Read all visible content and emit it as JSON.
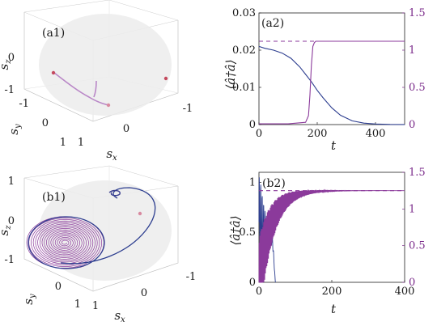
{
  "chart_data": [
    {
      "type": "line",
      "panel_label": "(a1)",
      "view": "3d-sphere",
      "xlabel": "s_x",
      "ylabel": "s_y",
      "zlabel": "s_z",
      "x_ticks": [
        "1",
        "0",
        "-1"
      ],
      "y_ticks": [
        "-1",
        "0",
        "1"
      ],
      "z_ticks": [
        "0",
        "-1"
      ],
      "series": [
        {
          "values": [
            [
              -0.85,
              0.0,
              -0.05
            ],
            [
              -0.6,
              0.1,
              -0.3
            ],
            [
              -0.3,
              0.2,
              -0.55
            ],
            [
              0.0,
              0.3,
              -0.7
            ],
            [
              0.3,
              0.4,
              -0.8
            ],
            [
              0.5,
              0.5,
              -0.85
            ]
          ]
        },
        {
          "values": [
            [
              0.05,
              0.2,
              -0.4
            ],
            [
              0.05,
              0.25,
              -0.65
            ],
            [
              0.0,
              0.35,
              -0.8
            ]
          ]
        }
      ],
      "points": [
        [
          -0.9,
          0.0,
          -0.1
        ],
        [
          0.95,
          0.1,
          -0.2
        ],
        [
          0.45,
          0.55,
          -0.95
        ]
      ]
    },
    {
      "type": "line",
      "panel_label": "(a2)",
      "xlabel": "t",
      "ylabel": "⟨â†â⟩",
      "xlim": [
        0,
        500
      ],
      "ylim": [
        0,
        0.03
      ],
      "ylim_right": [
        0,
        1.5
      ],
      "x_ticks": [
        "0",
        "200",
        "400"
      ],
      "y_ticks": [
        "0",
        "0.01",
        "0.02",
        "0.03"
      ],
      "y_ticks_right": [
        "0",
        "0.5",
        "1",
        "1.5"
      ],
      "series": [
        {
          "axis": "left",
          "color": "#2c3d8f",
          "x": [
            0,
            20,
            50,
            80,
            110,
            140,
            160,
            180,
            200,
            220,
            250,
            280,
            320,
            360,
            400,
            450,
            500
          ],
          "y": [
            0.021,
            0.0205,
            0.02,
            0.0192,
            0.0178,
            0.0155,
            0.0135,
            0.0115,
            0.0092,
            0.0072,
            0.0045,
            0.0025,
            0.001,
            0.0004,
            0.00015,
            5e-05,
            2e-05
          ]
        },
        {
          "axis": "right",
          "color": "#8b3a9b",
          "x": [
            0,
            100,
            160,
            170,
            175,
            180,
            185,
            190,
            195,
            200,
            500
          ],
          "y": [
            0.01,
            0.01,
            0.03,
            0.12,
            0.4,
            0.8,
            1.05,
            1.1,
            1.12,
            1.12,
            1.12
          ]
        },
        {
          "axis": "right",
          "color": "#8b3a9b",
          "dashed": true,
          "x": [
            0,
            500
          ],
          "y": [
            1.12,
            1.12
          ]
        }
      ]
    },
    {
      "type": "line",
      "panel_label": "(b1)",
      "view": "3d-sphere",
      "xlabel": "s_x",
      "ylabel": "s_y",
      "zlabel": "s_z",
      "x_ticks": [
        "1",
        "0",
        "-1"
      ],
      "y_ticks": [
        "0",
        "1"
      ],
      "z_ticks": [
        "1",
        "0",
        "-1"
      ],
      "series": [
        {
          "values": "spiral near pole"
        },
        {
          "values": "outer blue loop"
        }
      ]
    },
    {
      "type": "line",
      "panel_label": "(b2)",
      "xlabel": "t",
      "ylabel": "⟨â†â⟩",
      "xlim": [
        0,
        400
      ],
      "ylim": [
        0,
        1.1
      ],
      "ylim_right": [
        0,
        1.5
      ],
      "x_ticks": [
        "0",
        "200",
        "400"
      ],
      "y_ticks": [
        "0",
        "0.5",
        "1"
      ],
      "y_ticks_right": [
        "0",
        "0.5",
        "1",
        "1.5"
      ],
      "series": [
        {
          "axis": "left",
          "color": "#2c3d8f",
          "oscillating": true,
          "x_end": 45
        },
        {
          "axis": "right",
          "color": "#8b3a9b",
          "oscillating": true,
          "saturation": 1.25
        },
        {
          "axis": "right",
          "color": "#8b3a9b",
          "dashed": true,
          "x": [
            0,
            400
          ],
          "y": [
            1.25,
            1.25
          ]
        }
      ]
    }
  ]
}
